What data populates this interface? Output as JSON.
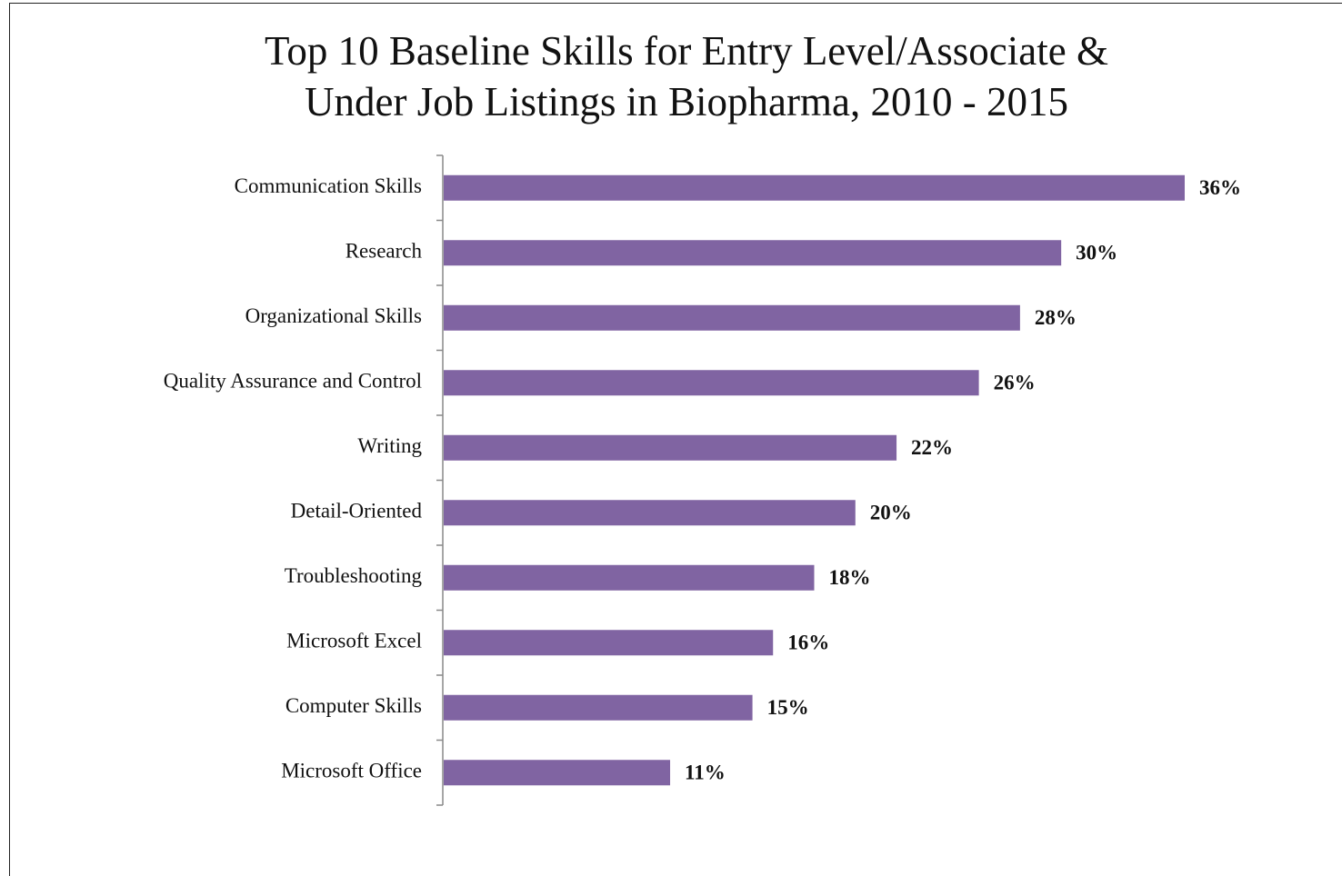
{
  "chart_data": {
    "type": "bar",
    "orientation": "horizontal",
    "title": "Top 10 Baseline Skills for Entry Level/Associate & Under Job Listings in Biopharma, 2010 - 2015",
    "categories": [
      "Communication Skills",
      "Research",
      "Organizational Skills",
      "Quality Assurance and Control",
      "Writing",
      "Detail-Oriented",
      "Troubleshooting",
      "Microsoft Excel",
      "Computer Skills",
      "Microsoft Office"
    ],
    "values": [
      36,
      30,
      28,
      26,
      22,
      20,
      18,
      16,
      15,
      11
    ],
    "value_labels": [
      "36%",
      "30%",
      "28%",
      "26%",
      "22%",
      "20%",
      "18%",
      "16%",
      "15%",
      "11%"
    ],
    "color": "#8064a2"
  }
}
